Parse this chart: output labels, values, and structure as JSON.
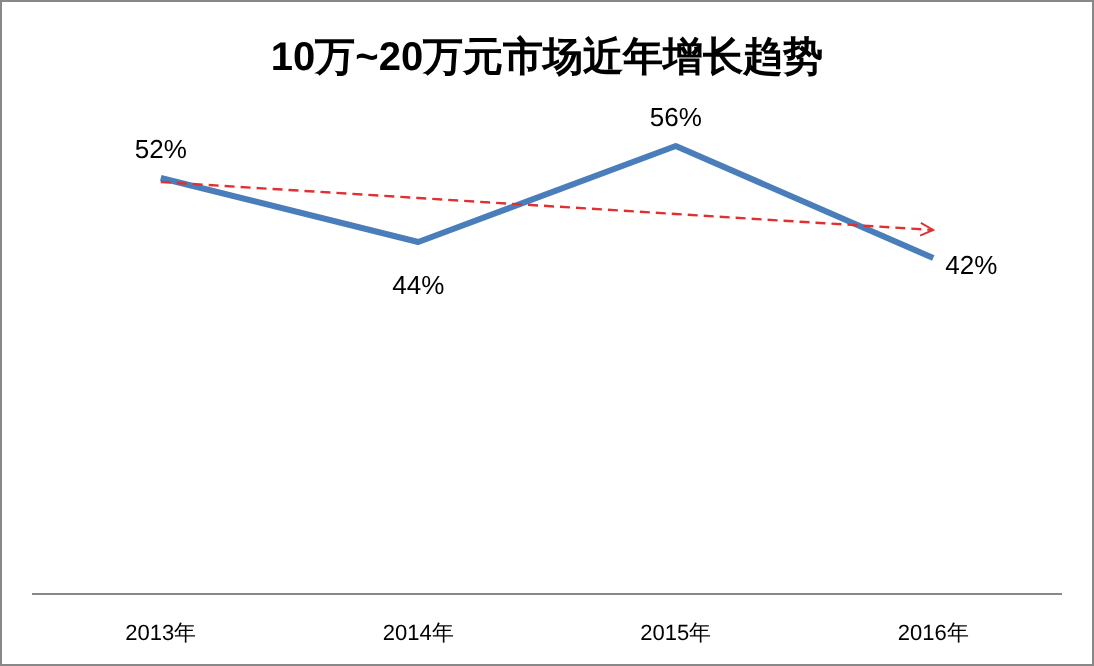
{
  "chart_data": {
    "type": "line",
    "title": "10万~20万元市场近年增长趋势",
    "categories": [
      "2013年",
      "2014年",
      "2015年",
      "2016年"
    ],
    "series": [
      {
        "color": "#4a7ebb",
        "values": [
          52,
          44,
          56,
          42
        ],
        "value_labels": [
          "52%",
          "44%",
          "56%",
          "42%"
        ]
      },
      {
        "type": "line",
        "color": "#e03030",
        "line_style": "dashed",
        "values": [
          51.5,
          49.5,
          47.5,
          45.5
        ]
      }
    ],
    "tick_labels": "x"
  }
}
